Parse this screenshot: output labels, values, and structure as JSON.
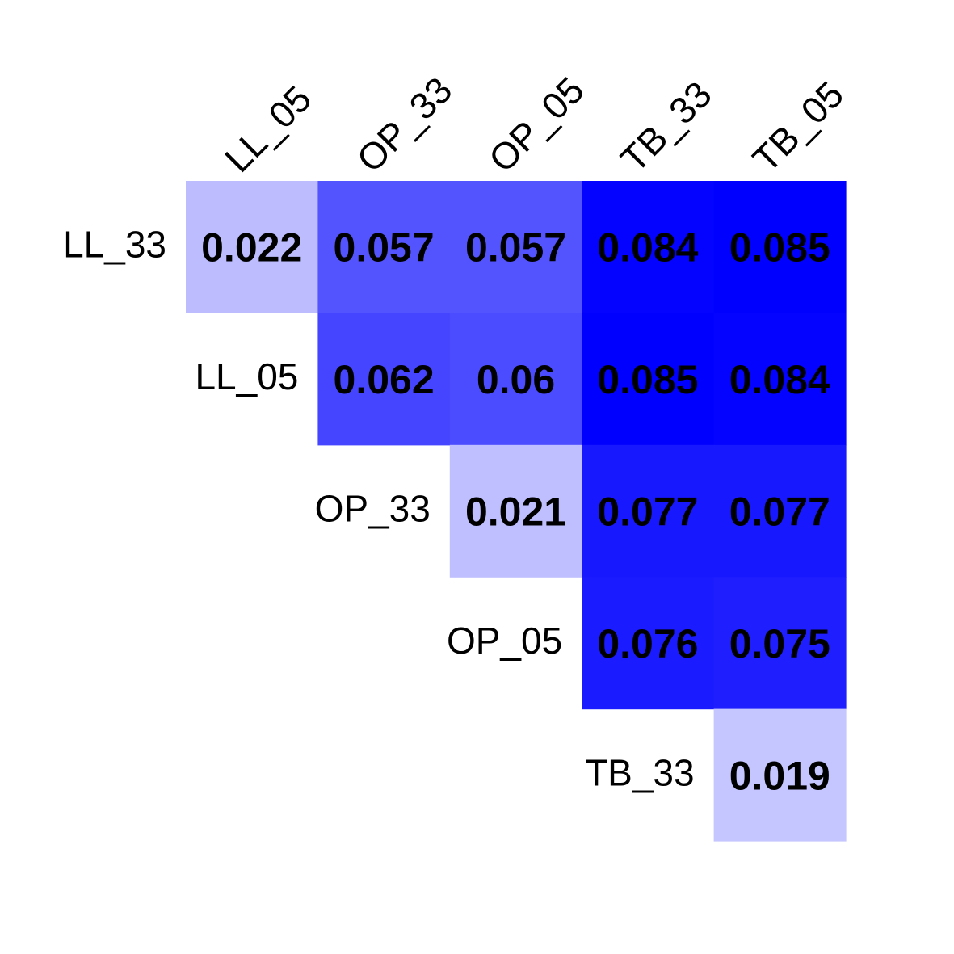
{
  "chart_data": {
    "type": "heatmap",
    "title": "",
    "xlabel": "",
    "ylabel": "",
    "row_labels": [
      "LL_33",
      "LL_05",
      "OP_33",
      "OP_05",
      "TB_33"
    ],
    "col_labels": [
      "LL_05",
      "OP_33",
      "OP_05",
      "TB_33",
      "TB_05"
    ],
    "cells": [
      {
        "row": 0,
        "col": 0,
        "value": 0.022
      },
      {
        "row": 0,
        "col": 1,
        "value": 0.057
      },
      {
        "row": 0,
        "col": 2,
        "value": 0.057
      },
      {
        "row": 0,
        "col": 3,
        "value": 0.084
      },
      {
        "row": 0,
        "col": 4,
        "value": 0.085
      },
      {
        "row": 1,
        "col": 1,
        "value": 0.062
      },
      {
        "row": 1,
        "col": 2,
        "value": 0.06
      },
      {
        "row": 1,
        "col": 3,
        "value": 0.085
      },
      {
        "row": 1,
        "col": 4,
        "value": 0.084
      },
      {
        "row": 2,
        "col": 2,
        "value": 0.021
      },
      {
        "row": 2,
        "col": 3,
        "value": 0.077
      },
      {
        "row": 2,
        "col": 4,
        "value": 0.077
      },
      {
        "row": 3,
        "col": 3,
        "value": 0.076
      },
      {
        "row": 3,
        "col": 4,
        "value": 0.075
      },
      {
        "row": 4,
        "col": 4,
        "value": 0.019
      }
    ],
    "color_low": "#c5c5ff",
    "color_high": "#0000ff",
    "value_range": [
      0.019,
      0.085
    ],
    "legend": "none",
    "grid": false
  }
}
